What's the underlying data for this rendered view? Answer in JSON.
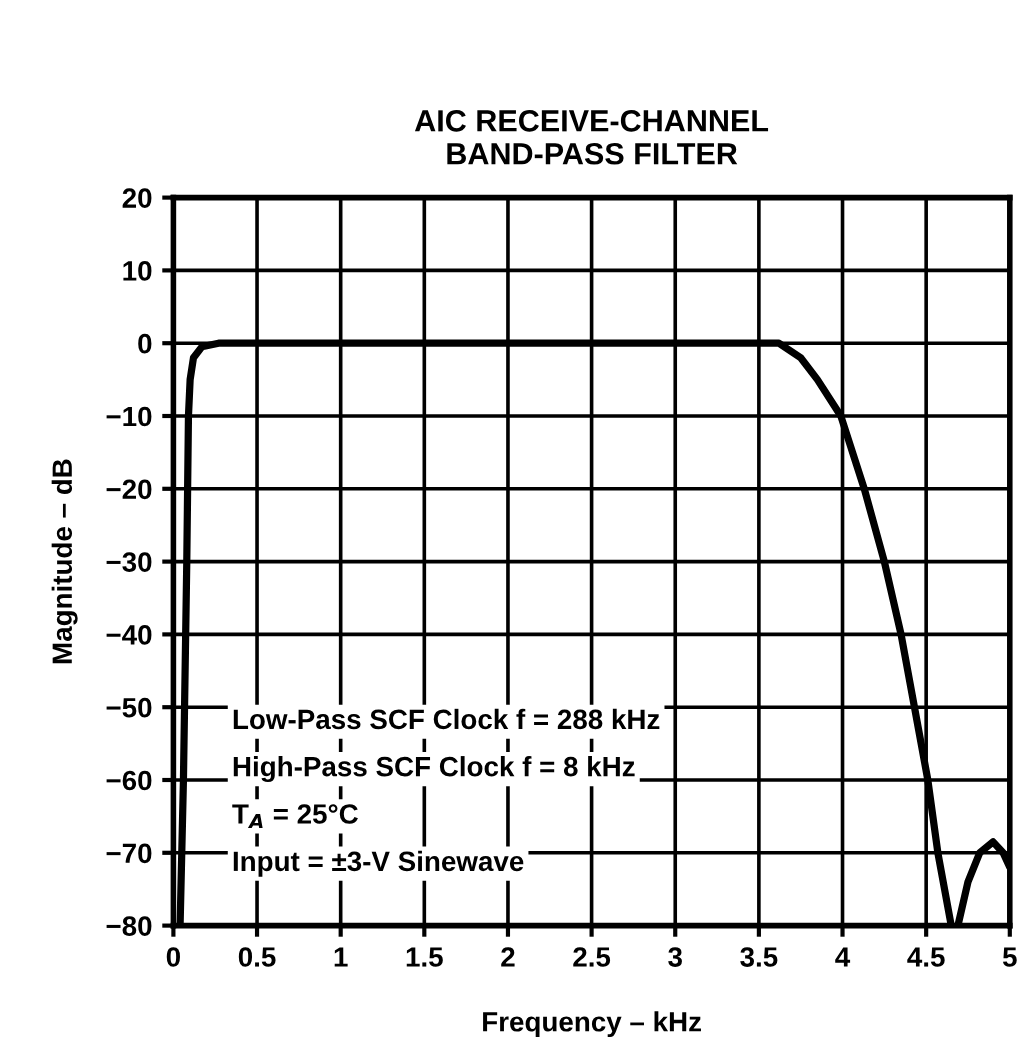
{
  "chart_data": {
    "type": "line",
    "title": "AIC RECEIVE-CHANNEL\nBAND-PASS FILTER",
    "xlabel": "Frequency – kHz",
    "ylabel": "Magnitude – dB",
    "series": [
      {
        "color": "#000000",
        "x": [
          0.04,
          0.06,
          0.08,
          0.09,
          0.1,
          0.12,
          0.17,
          0.27,
          1.0,
          2.0,
          3.0,
          3.62,
          3.75,
          3.85,
          3.99,
          4.13,
          4.25,
          4.35,
          4.43,
          4.51,
          4.57,
          4.65
        ],
        "values": [
          -80,
          -60,
          -30,
          -10,
          -5,
          -2,
          -0.5,
          0,
          0,
          0,
          0,
          0,
          -2,
          -5,
          -10,
          -20,
          -30,
          -40,
          -50,
          -60,
          -70,
          -80
        ]
      },
      {
        "color": "#000000",
        "x": [
          4.69,
          4.75,
          4.82,
          4.9,
          4.96,
          5.0
        ],
        "values": [
          -80,
          -74,
          -70,
          -68.5,
          -70,
          -72
        ]
      }
    ],
    "xlim": [
      0,
      5
    ],
    "ylim": [
      -80,
      20
    ],
    "xticks": [
      0,
      0.5,
      1,
      1.5,
      2,
      2.5,
      3,
      3.5,
      4,
      4.5,
      5
    ],
    "yticks": [
      -80,
      -70,
      -60,
      -50,
      -40,
      -30,
      -20,
      -10,
      0,
      10,
      20
    ],
    "grid": true,
    "line_style": "solid",
    "marker": "none",
    "annotations": [
      "Low-Pass SCF Clock f = 288 kHz",
      "High-Pass SCF Clock f = 8 kHz",
      "T$_{A}$ = 25°C",
      "Input = ±3-V Sinewave"
    ]
  }
}
